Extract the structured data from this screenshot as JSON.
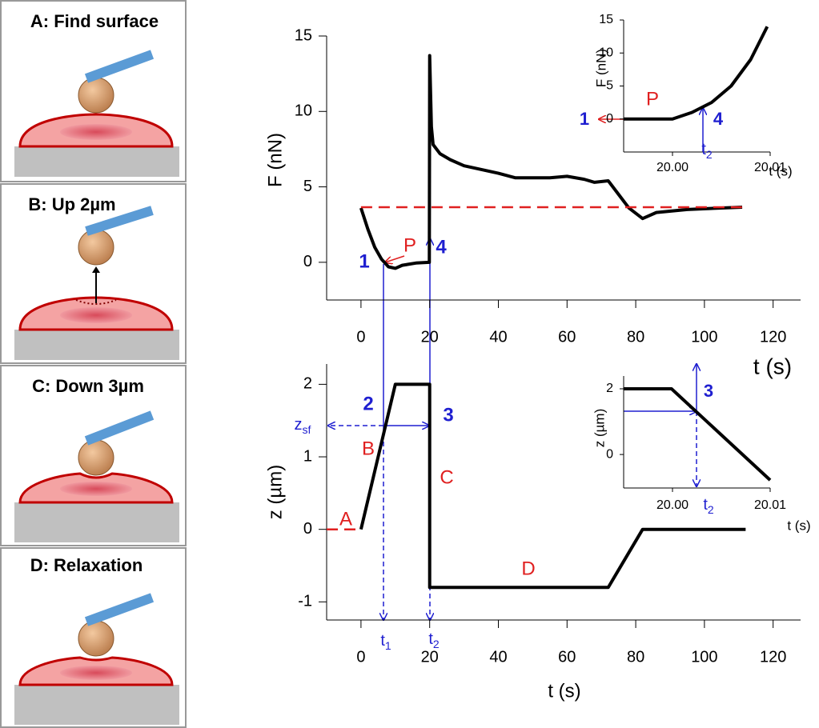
{
  "panels": [
    {
      "title": "A: Find surface"
    },
    {
      "title": "B: Up 2µm"
    },
    {
      "title": "C: Down 3µm"
    },
    {
      "title": "D: Relaxation"
    }
  ],
  "chart_data": [
    {
      "type": "line",
      "x_label": "t (s)",
      "y_label": "F (nN)",
      "xlim": [
        -10,
        128
      ],
      "xticks": [
        0,
        20,
        40,
        60,
        80,
        100,
        120
      ],
      "ylim": [
        -2.5,
        15
      ],
      "yticks": [
        0,
        5,
        10,
        15
      ],
      "series": [
        {
          "color": "#000000",
          "dashed": false,
          "x": [
            0,
            2,
            4,
            6,
            8,
            10,
            12,
            16,
            19.9,
            20,
            20.5,
            21,
            23,
            26,
            30,
            40,
            45,
            55,
            60,
            65,
            68,
            72,
            75,
            78,
            82,
            86,
            95,
            105,
            111
          ],
          "values": [
            3.6,
            2.2,
            1.0,
            0.2,
            -0.3,
            -0.4,
            -0.2,
            -0.05,
            0,
            13.7,
            9,
            7.8,
            7.2,
            6.8,
            6.4,
            5.9,
            5.6,
            5.6,
            5.7,
            5.5,
            5.3,
            5.4,
            4.5,
            3.6,
            2.9,
            3.3,
            3.5,
            3.6,
            3.65
          ]
        },
        {
          "color": "#e02020",
          "dashed": true,
          "x": [
            0,
            111
          ],
          "values": [
            3.65,
            3.65
          ]
        }
      ],
      "annotations": [
        {
          "text": "1",
          "color": "#1f1fd0",
          "bold": true
        },
        {
          "text": "P",
          "color": "#e02020",
          "bold": false
        },
        {
          "text": "4",
          "color": "#1f1fd0",
          "bold": true
        }
      ]
    },
    {
      "type": "line",
      "x_label": "t (s)",
      "y_label": "F (nN)",
      "xlim": [
        19.995,
        20.01
      ],
      "xticks": [
        {
          "value": 20.0,
          "label": "20.00"
        },
        {
          "value": 20.01,
          "label": "20.01"
        }
      ],
      "ylim": [
        -5,
        15
      ],
      "yticks": [
        0,
        5,
        10,
        15
      ],
      "series": [
        {
          "color": "#000000",
          "dashed": false,
          "x": [
            19.995,
            20.0,
            20.002,
            20.004,
            20.006,
            20.008,
            20.0097
          ],
          "values": [
            0,
            0,
            1,
            2.5,
            5,
            9,
            14
          ]
        }
      ],
      "annotations": [
        {
          "text": "1",
          "color": "#1f1fd0",
          "bold": true
        },
        {
          "text": "P",
          "color": "#e02020",
          "bold": false
        },
        {
          "text": "4",
          "color": "#1f1fd0",
          "bold": true
        },
        {
          "text": "t",
          "sub": "2",
          "color": "#1f1fd0",
          "bold": false
        }
      ]
    },
    {
      "type": "line",
      "x_label": "t (s)",
      "y_label": "z (µm)",
      "xlim": [
        -10,
        128
      ],
      "xticks": [
        0,
        20,
        40,
        60,
        80,
        100,
        120
      ],
      "ylim": [
        -1.25,
        2.28
      ],
      "yticks": [
        -1,
        0,
        1,
        2
      ],
      "series": [
        {
          "color": "#000000",
          "dashed": false,
          "x": [
            0,
            10,
            20,
            20,
            72,
            82,
            112
          ],
          "values": [
            0,
            2,
            2,
            -0.8,
            -0.8,
            0,
            0
          ]
        },
        {
          "color": "#e02020",
          "dashed": true,
          "x": [
            -10,
            0
          ],
          "values": [
            0,
            0
          ]
        }
      ],
      "annotations": [
        {
          "text": "2",
          "color": "#1f1fd0",
          "bold": true
        },
        {
          "text": "3",
          "color": "#1f1fd0",
          "bold": true
        },
        {
          "text": "A",
          "color": "#e02020",
          "bold": false
        },
        {
          "text": "B",
          "color": "#e02020",
          "bold": false
        },
        {
          "text": "C",
          "color": "#e02020",
          "bold": false
        },
        {
          "text": "D",
          "color": "#e02020",
          "bold": false
        },
        {
          "text": "z",
          "sub": "sf",
          "color": "#1f1fd0",
          "bold": false
        },
        {
          "text": "t",
          "sub": "1",
          "color": "#1f1fd0",
          "bold": false
        },
        {
          "text": "t",
          "sub": "2",
          "color": "#1f1fd0",
          "bold": false
        }
      ]
    },
    {
      "type": "line",
      "x_label": "t (s)",
      "y_label": "z (µm)",
      "xlim": [
        19.995,
        20.01
      ],
      "xticks": [
        {
          "value": 20.0,
          "label": "20.00"
        },
        {
          "value": 20.01,
          "label": "20.01"
        }
      ],
      "ylim": [
        -1.02,
        2.39
      ],
      "yticks": [
        0,
        2
      ],
      "series": [
        {
          "color": "#000000",
          "dashed": false,
          "x": [
            19.995,
            19.9999,
            20.01
          ],
          "values": [
            2,
            2,
            -0.78
          ]
        }
      ],
      "annotations": [
        {
          "text": "3",
          "color": "#1f1fd0",
          "bold": true
        },
        {
          "text": "t",
          "sub": "2",
          "color": "#1f1fd0",
          "bold": false
        }
      ]
    }
  ]
}
